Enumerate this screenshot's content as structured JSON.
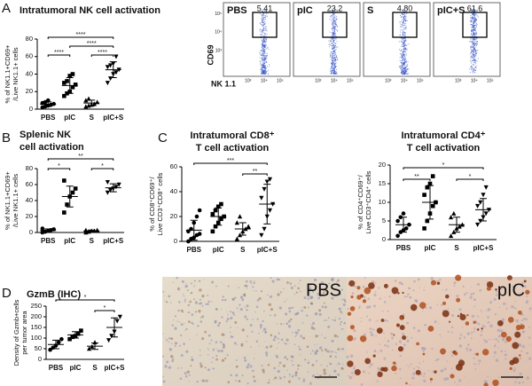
{
  "panels": [
    "A",
    "B",
    "C",
    "D"
  ],
  "chart_data": [
    {
      "type": "strip",
      "title": [
        "Intratumoral NK cell activation"
      ],
      "ylabel": [
        "% of NK1.1+CD69+",
        "/Live NK1.1+ cells"
      ],
      "categories": [
        "PBS",
        "pIC",
        "S",
        "pIC+S"
      ],
      "markers": [
        "circle",
        "square",
        "triangle",
        "triangle-down"
      ],
      "points": [
        [
          2,
          3,
          4,
          5,
          6,
          7,
          8,
          10
        ],
        [
          15,
          18,
          20,
          25,
          28,
          30,
          32,
          38,
          40
        ],
        [
          3,
          4,
          5,
          6,
          8,
          10,
          12
        ],
        [
          30,
          35,
          40,
          42,
          45,
          48,
          50,
          52,
          60
        ]
      ],
      "mean": [
        5.6,
        27,
        7,
        45
      ],
      "sd": [
        2.6,
        9,
        3.2,
        9
      ],
      "ylim": [
        0,
        80
      ],
      "yticks": [
        0,
        20,
        40,
        60,
        80
      ],
      "brackets": [
        {
          "from": 0,
          "to": 1,
          "label": "****"
        },
        {
          "from": 2,
          "to": 3,
          "label": "****"
        },
        {
          "from": 1,
          "to": 3,
          "label": "****"
        },
        {
          "from": 0,
          "to": 3,
          "label": "****"
        }
      ]
    },
    {
      "type": "strip",
      "title": [
        "Splenic NK",
        "cell activation"
      ],
      "ylabel": [
        "% of NK1.1+CD69+",
        "/Live NK1.1+ cells"
      ],
      "categories": [
        "PBS",
        "pIC",
        "S",
        "pIC+S"
      ],
      "markers": [
        "circle",
        "square",
        "triangle",
        "triangle-down"
      ],
      "points": [
        [
          0,
          1,
          2,
          3,
          4,
          5
        ],
        [
          25,
          35,
          45,
          50,
          55,
          65
        ],
        [
          0,
          1,
          2,
          2,
          3,
          3
        ],
        [
          50,
          53,
          55,
          57,
          60,
          63
        ]
      ],
      "mean": [
        2.5,
        45,
        2,
        56
      ],
      "sd": [
        2,
        13,
        1,
        5
      ],
      "ylim": [
        0,
        80
      ],
      "yticks": [
        0,
        20,
        40,
        60,
        80
      ],
      "brackets": [
        {
          "from": 0,
          "to": 1,
          "label": "*"
        },
        {
          "from": 2,
          "to": 3,
          "label": "*"
        },
        {
          "from": 0,
          "to": 3,
          "label": "**"
        }
      ]
    },
    {
      "type": "strip",
      "title": [
        "Intratumoral CD8⁺",
        "T cell activation"
      ],
      "ylabel": [
        "% of CD8⁺CD69⁺/",
        "Live CD3⁺CD8⁺ cells"
      ],
      "categories": [
        "PBS",
        "pIC",
        "S",
        "pIC+S"
      ],
      "markers": [
        "circle",
        "square",
        "triangle",
        "triangle-down"
      ],
      "points": [
        [
          0,
          2,
          3,
          5,
          6,
          8,
          10,
          15,
          20,
          25
        ],
        [
          8,
          12,
          15,
          18,
          20,
          22,
          25,
          28,
          30
        ],
        [
          2,
          5,
          8,
          10,
          12,
          15,
          20
        ],
        [
          5,
          10,
          20,
          25,
          30,
          35,
          42,
          48,
          50
        ]
      ],
      "mean": [
        9,
        20,
        10,
        30
      ],
      "sd": [
        8,
        7,
        5,
        16
      ],
      "ylim": [
        0,
        60
      ],
      "yticks": [
        0,
        20,
        40,
        60
      ],
      "brackets": [
        {
          "from": 2,
          "to": 3,
          "label": "**"
        },
        {
          "from": 0,
          "to": 3,
          "label": "***"
        }
      ]
    },
    {
      "type": "strip",
      "title": [
        "Intratumoral CD4⁺",
        "T cell activation"
      ],
      "ylabel": [
        "% of CD4⁺CD69⁺/",
        "Live CD3⁺CD4⁺ cells"
      ],
      "categories": [
        "PBS",
        "pIC",
        "S",
        "pIC+S"
      ],
      "markers": [
        "circle",
        "square",
        "triangle",
        "triangle-down"
      ],
      "points": [
        [
          1,
          2,
          2.5,
          3,
          4,
          5,
          6,
          7
        ],
        [
          3,
          5,
          7,
          9,
          10,
          12,
          14,
          15,
          17
        ],
        [
          1,
          2,
          3,
          3.5,
          4,
          6,
          7
        ],
        [
          4,
          5,
          6,
          7,
          8,
          9,
          10,
          12,
          14
        ]
      ],
      "mean": [
        4,
        10,
        4,
        8
      ],
      "sd": [
        2,
        4.5,
        2,
        3
      ],
      "ylim": [
        0,
        20
      ],
      "yticks": [
        0,
        5,
        10,
        15,
        20
      ],
      "brackets": [
        {
          "from": 0,
          "to": 1,
          "label": "**"
        },
        {
          "from": 2,
          "to": 3,
          "label": "*"
        },
        {
          "from": 0,
          "to": 3,
          "label": "*"
        }
      ]
    },
    {
      "type": "strip",
      "title": [
        "GzmB (IHC)"
      ],
      "ylabel": [
        "Density of Gzmb+cells",
        "per tumor area"
      ],
      "categories": [
        "PBS",
        "pIC",
        "S",
        "pIC+S"
      ],
      "markers": [
        "circle",
        "square",
        "triangle",
        "triangle-down"
      ],
      "points": [
        [
          45,
          55,
          65,
          80,
          95
        ],
        [
          95,
          105,
          110,
          120,
          135
        ],
        [
          50,
          60,
          80
        ],
        [
          90,
          110,
          130,
          180,
          200
        ]
      ],
      "mean": [
        70,
        115,
        62,
        150
      ],
      "sd": [
        20,
        15,
        15,
        45
      ],
      "ylim": [
        0,
        250
      ],
      "yticks": [
        0,
        50,
        100,
        150,
        200,
        250
      ],
      "brackets": [
        {
          "from": 2,
          "to": 3,
          "label": "*"
        },
        {
          "from": 0,
          "to": 3,
          "label": "*"
        }
      ]
    }
  ],
  "flow": {
    "samples": [
      "PBS",
      "pIC",
      "S",
      "pIC+S"
    ],
    "gates": [
      "5.41",
      "23.2",
      "4.80",
      "61.6"
    ],
    "y_label": "CD69",
    "x_label": "NK 1.1",
    "ticks": [
      "10³",
      "10⁴",
      "10⁵"
    ]
  },
  "histology": {
    "labels": [
      "PBS",
      "pIC"
    ]
  }
}
